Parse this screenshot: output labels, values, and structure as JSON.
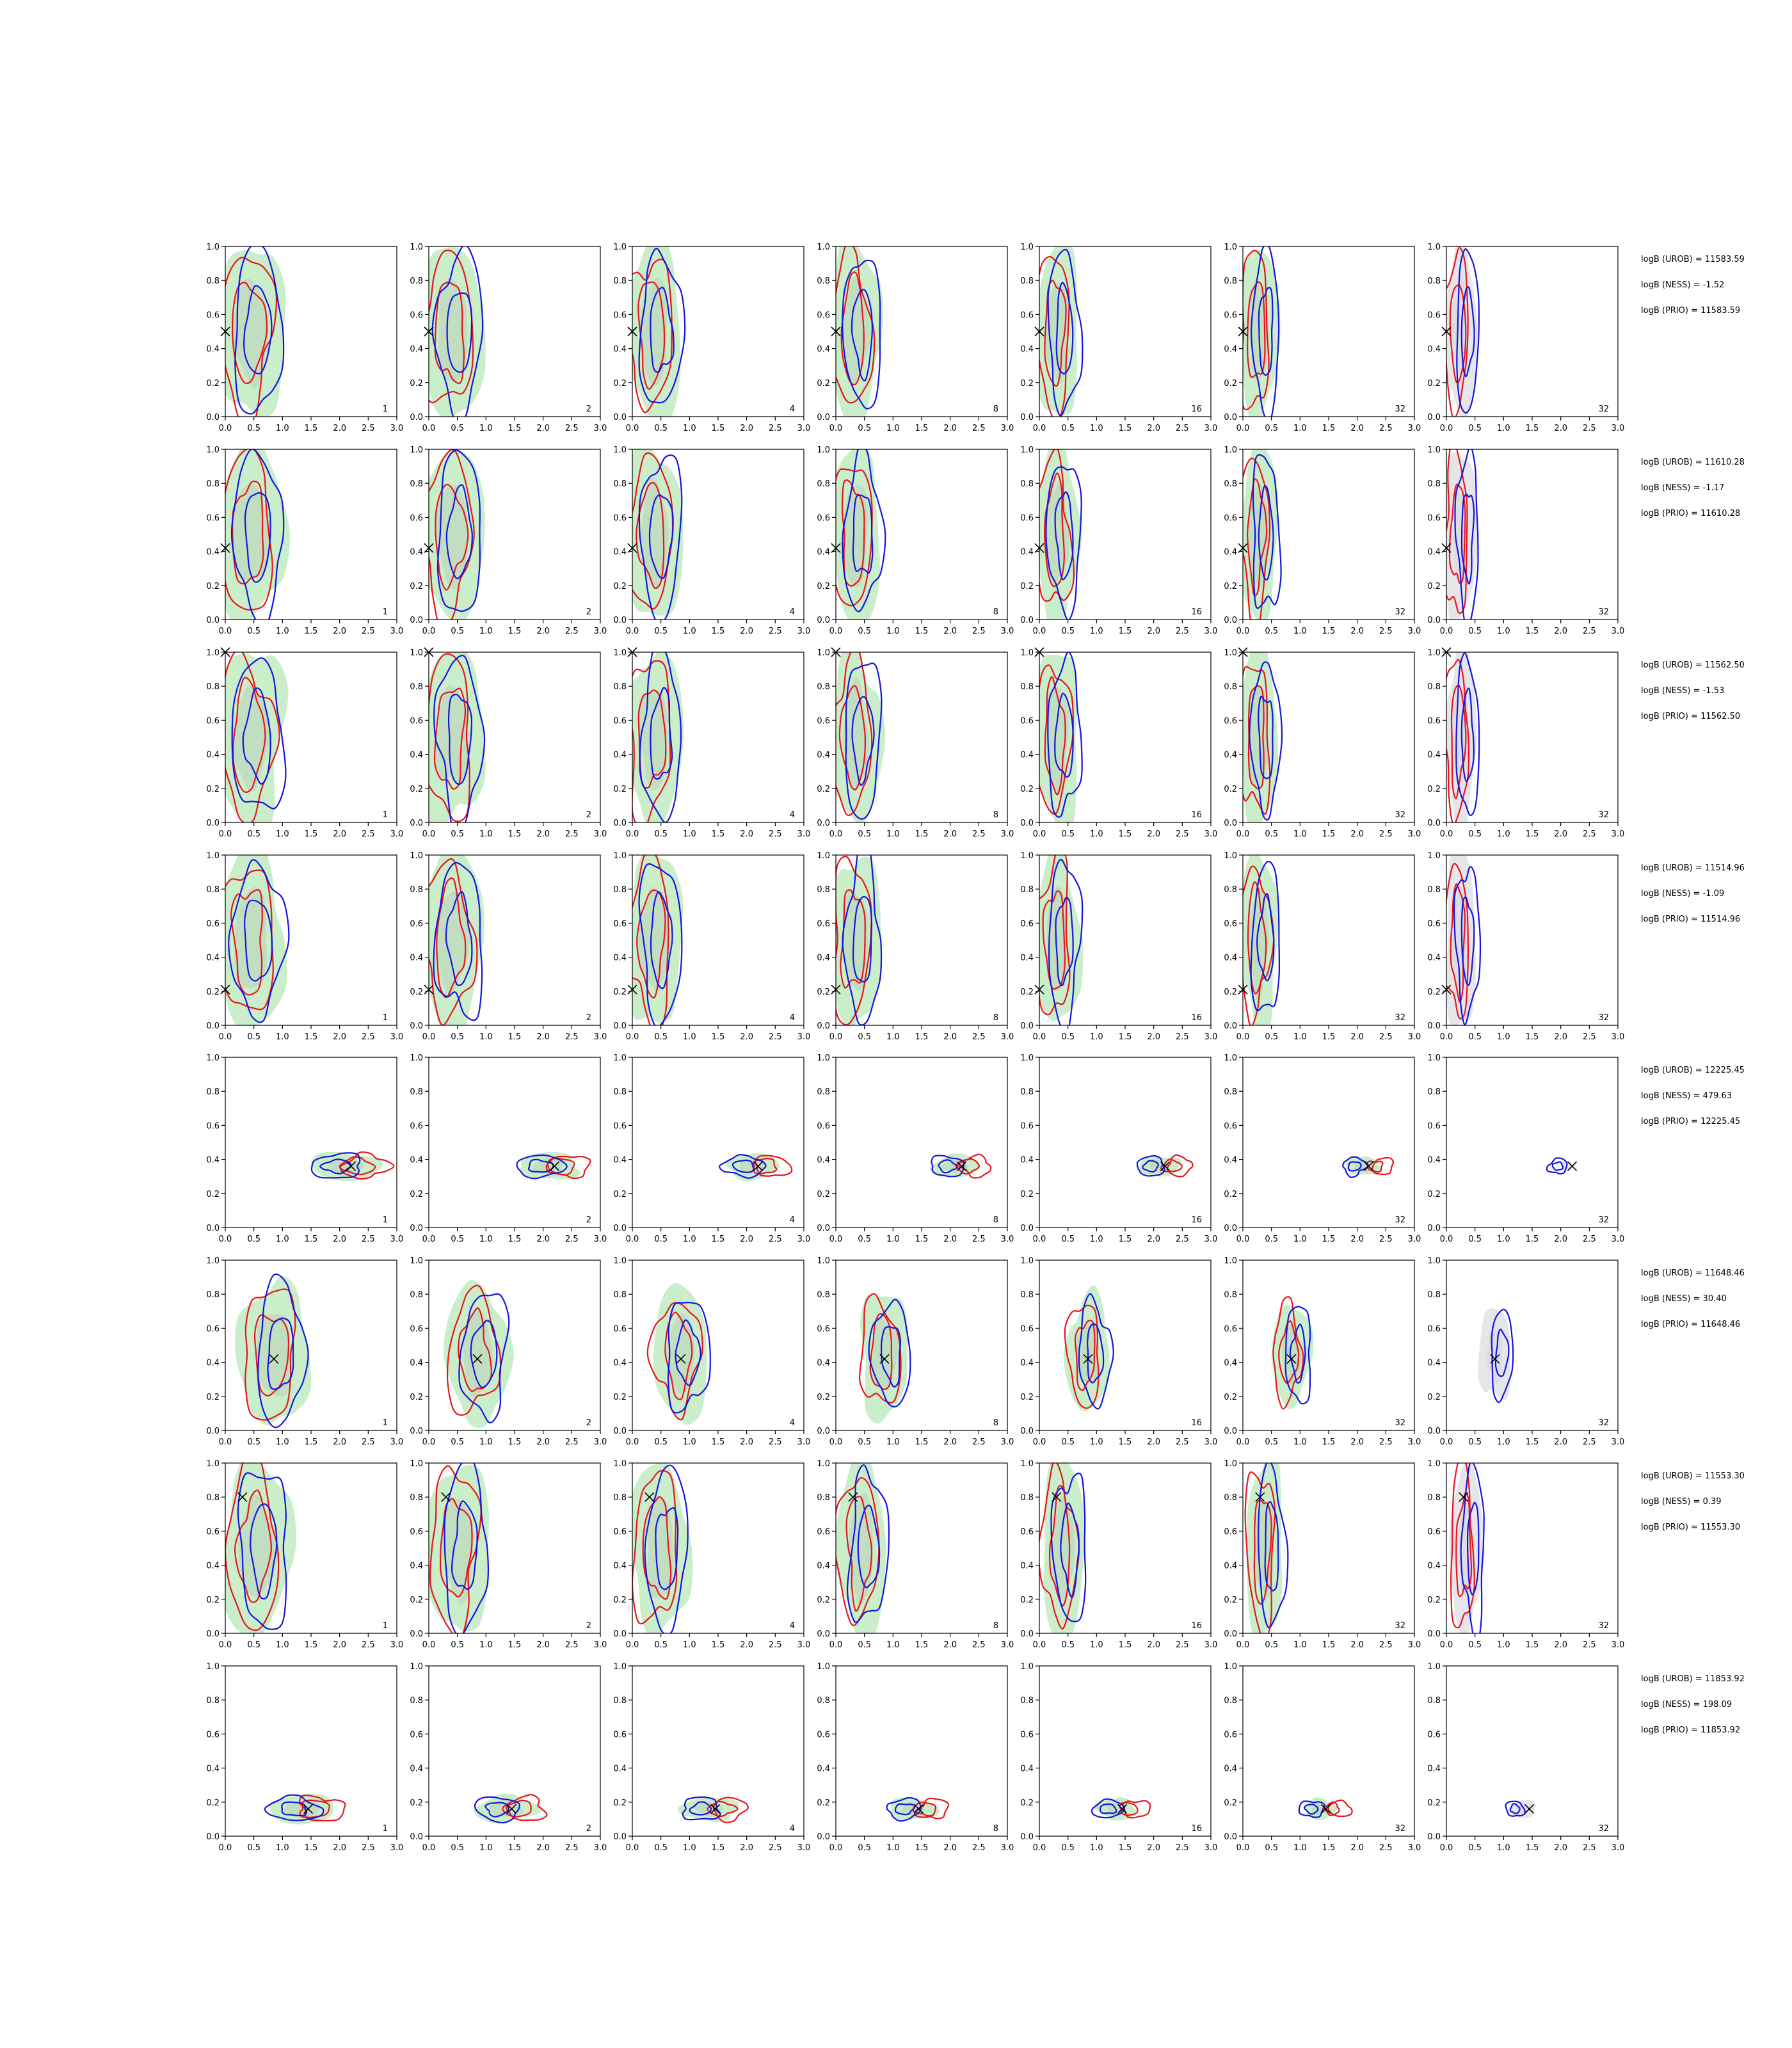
{
  "figure": {
    "background": "#ffffff",
    "rows": 8,
    "columns": 7
  },
  "colors": {
    "fill_outer": "#c9eec9",
    "fill_inner": "#b9d2b9",
    "fill_grey": "#e6e6ea",
    "contour_red": "#e8141c",
    "contour_blue": "#1414e0",
    "marker": "#000000",
    "axis": "#000000"
  },
  "chart_data": {
    "type": "contour",
    "xlim": [
      0.0,
      3.0
    ],
    "ylim": [
      0.0,
      1.0
    ],
    "x_ticks": [
      "0.0",
      "0.5",
      "1.0",
      "1.5",
      "2.0",
      "2.5",
      "3.0"
    ],
    "y_ticks": [
      "0.0",
      "0.2",
      "0.4",
      "0.6",
      "0.8",
      "1.0"
    ],
    "panel_numbers": [
      "1",
      "2",
      "4",
      "8",
      "16",
      "32",
      "32"
    ],
    "rows": [
      {
        "true_x": 0.0,
        "true_y": 0.5,
        "shape": "wide",
        "logB": [
          "logB (UROB) = 11583.59",
          "logB (NESS) = -1.52",
          "logB (PRIO) = 11583.59"
        ]
      },
      {
        "true_x": 0.0,
        "true_y": 0.42,
        "shape": "wide",
        "logB": [
          "logB (UROB) = 11610.28",
          "logB (NESS) = -1.17",
          "logB (PRIO) = 11610.28"
        ]
      },
      {
        "true_x": 0.0,
        "true_y": 1.0,
        "shape": "wide",
        "logB": [
          "logB (UROB) = 11562.50",
          "logB (NESS) = -1.53",
          "logB (PRIO) = 11562.50"
        ]
      },
      {
        "true_x": 0.0,
        "true_y": 0.21,
        "shape": "wide",
        "logB": [
          "logB (UROB) = 11514.96",
          "logB (NESS) = -1.09",
          "logB (PRIO) = 11514.96"
        ]
      },
      {
        "true_x": 2.2,
        "true_y": 0.36,
        "shape": "narrow",
        "logB": [
          "logB (UROB) = 12225.45",
          "logB (NESS) = 479.63",
          "logB (PRIO) = 12225.45"
        ]
      },
      {
        "true_x": 0.85,
        "true_y": 0.42,
        "shape": "medium",
        "logB": [
          "logB (UROB) = 11648.46",
          "logB (NESS) = 30.40",
          "logB (PRIO) = 11648.46"
        ]
      },
      {
        "true_x": 0.3,
        "true_y": 0.8,
        "shape": "wide",
        "logB": [
          "logB (UROB) = 11553.30",
          "logB (NESS) = 0.39",
          "logB (PRIO) = 11553.30"
        ]
      },
      {
        "true_x": 1.45,
        "true_y": 0.16,
        "shape": "narrow",
        "logB": [
          "logB (UROB) = 11853.92",
          "logB (NESS) = 198.09",
          "logB (PRIO) = 11853.92"
        ]
      }
    ]
  }
}
